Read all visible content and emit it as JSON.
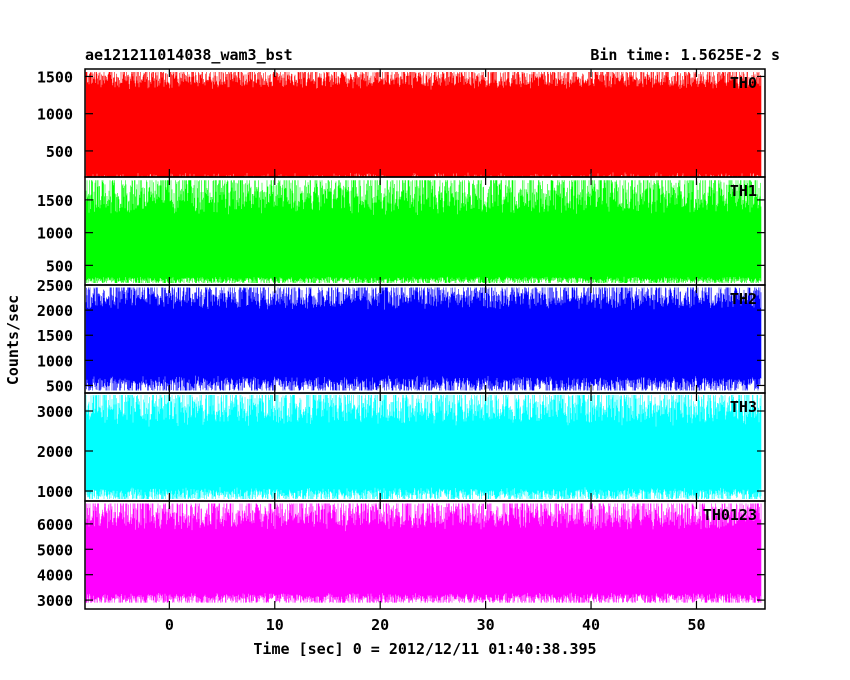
{
  "chart_data": {
    "type": "line",
    "title": "ae121211014038_wam3_bst",
    "subtitle": "Bin time: 1.5625E-2 s",
    "xlabel": "Time [sec] 0 = 2012/12/11 01:40:38.395",
    "ylabel": "Counts/sec",
    "xlim": [
      -8,
      56.5
    ],
    "x_ticks": [
      0,
      10,
      20,
      30,
      40,
      50
    ],
    "x_range_data": [
      -7.9,
      56.1
    ],
    "grid": false,
    "panels": [
      {
        "name": "TH0",
        "color": "#ff0000",
        "ylim": [
          150,
          1600
        ],
        "y_ticks": [
          500,
          1000,
          1500
        ],
        "band_low": 220,
        "band_high": 1320,
        "spike_min": 20,
        "spike_max": 1560
      },
      {
        "name": "TH1",
        "color": "#00ff00",
        "ylim": [
          200,
          1850
        ],
        "y_ticks": [
          500,
          1000,
          1500
        ],
        "band_low": 330,
        "band_high": 1250,
        "spike_min": 230,
        "spike_max": 1800
      },
      {
        "name": "TH2",
        "color": "#0000ff",
        "ylim": [
          350,
          2500
        ],
        "y_ticks": [
          500,
          1000,
          1500,
          2000,
          2500
        ],
        "band_low": 700,
        "band_high": 2000,
        "spike_min": 400,
        "spike_max": 2450
      },
      {
        "name": "TH3",
        "color": "#00ffff",
        "ylim": [
          750,
          3450
        ],
        "y_ticks": [
          1000,
          2000,
          3000
        ],
        "band_low": 1100,
        "band_high": 2600,
        "spike_min": 800,
        "spike_max": 3400
      },
      {
        "name": "TH0123",
        "color": "#ff00ff",
        "ylim": [
          2650,
          6900
        ],
        "y_ticks": [
          3000,
          4000,
          5000,
          6000
        ],
        "band_low": 3300,
        "band_high": 5700,
        "spike_min": 2900,
        "spike_max": 6800
      }
    ]
  }
}
